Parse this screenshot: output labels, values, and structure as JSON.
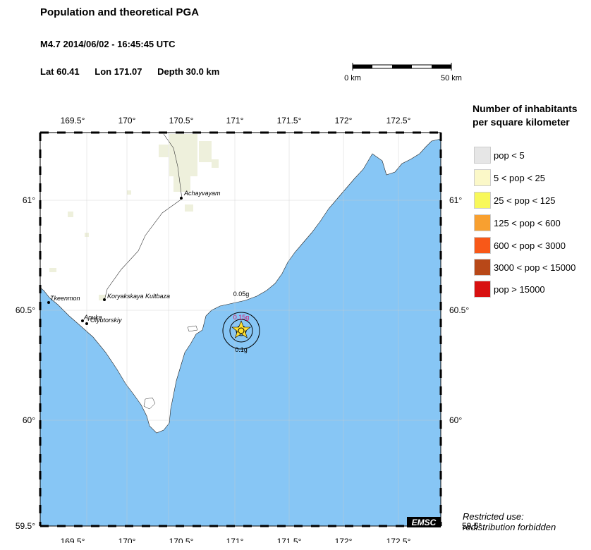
{
  "header": {
    "title": "Population and theoretical PGA",
    "event": "M4.7  2014/06/02 - 16:45:45 UTC",
    "lat": "Lat 60.41",
    "lon": "Lon 171.07",
    "depth": "Depth  30.0 km"
  },
  "scale": {
    "left_label": "0 km",
    "right_label": "50 km"
  },
  "map": {
    "x_ticks": [
      "169.5°",
      "170°",
      "170.5°",
      "171°",
      "171.5°",
      "172°",
      "172.5°"
    ],
    "y_ticks": [
      "61°",
      "60.5°",
      "60°",
      "59.5°"
    ],
    "water_color": "#87c6f5",
    "land_color": "#ffffff",
    "places": [
      {
        "name": "Achayvayam"
      },
      {
        "name": "Koryakskaya Kultbaza"
      },
      {
        "name": "Tkeenmon"
      },
      {
        "name": "Apuka"
      },
      {
        "name": "Olyutorskiy"
      }
    ],
    "pga_labels": [
      "0.05g",
      "0.15g",
      "0.1g"
    ],
    "epicenter": {
      "lat": 60.41,
      "lon": 171.07
    },
    "logo": "EMSC"
  },
  "legend": {
    "title_line1": "Number of inhabitants",
    "title_line2": "per square kilometer",
    "items": [
      {
        "label": "pop < 5",
        "color": "#e6e6e6"
      },
      {
        "label": "5 < pop < 25",
        "color": "#fbf8c8"
      },
      {
        "label": "25 < pop < 125",
        "color": "#f8f85a"
      },
      {
        "label": "125 < pop < 600",
        "color": "#f8a030"
      },
      {
        "label": "600 < pop < 3000",
        "color": "#f85818"
      },
      {
        "label": "3000 < pop < 15000",
        "color": "#b84818"
      },
      {
        "label": "pop > 15000",
        "color": "#d81010"
      }
    ]
  },
  "footer": {
    "line1": "Restricted use:",
    "line2": "redistribution forbidden"
  }
}
